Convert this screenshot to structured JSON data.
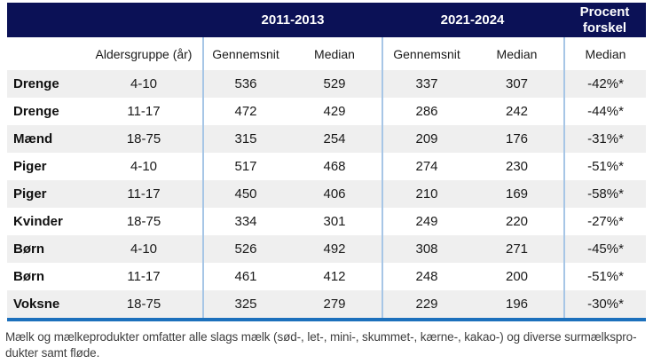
{
  "chart_data": {
    "type": "table",
    "periods": [
      "2011-2013",
      "2021-2024"
    ],
    "diff_header": "Procent forskel",
    "sub_headers": [
      "",
      "Aldersgruppe (år)",
      "Gennemsnit",
      "Median",
      "Gennemsnit",
      "Median",
      "Median"
    ],
    "rows": [
      {
        "group": "Drenge",
        "age": "4-10",
        "avg_2011_2013": 536,
        "median_2011_2013": 529,
        "avg_2021_2024": 337,
        "median_2021_2024": 307,
        "pct_diff_median": "-42%*"
      },
      {
        "group": "Drenge",
        "age": "11-17",
        "avg_2011_2013": 472,
        "median_2011_2013": 429,
        "avg_2021_2024": 286,
        "median_2021_2024": 242,
        "pct_diff_median": "-44%*"
      },
      {
        "group": "Mænd",
        "age": "18-75",
        "avg_2011_2013": 315,
        "median_2011_2013": 254,
        "avg_2021_2024": 209,
        "median_2021_2024": 176,
        "pct_diff_median": "-31%*"
      },
      {
        "group": "Piger",
        "age": "4-10",
        "avg_2011_2013": 517,
        "median_2011_2013": 468,
        "avg_2021_2024": 274,
        "median_2021_2024": 230,
        "pct_diff_median": "-51%*"
      },
      {
        "group": "Piger",
        "age": "11-17",
        "avg_2011_2013": 450,
        "median_2011_2013": 406,
        "avg_2021_2024": 210,
        "median_2021_2024": 169,
        "pct_diff_median": "-58%*"
      },
      {
        "group": "Kvinder",
        "age": "18-75",
        "avg_2011_2013": 334,
        "median_2011_2013": 301,
        "avg_2021_2024": 249,
        "median_2021_2024": 220,
        "pct_diff_median": "-27%*"
      },
      {
        "group": "Børn",
        "age": "4-10",
        "avg_2011_2013": 526,
        "median_2011_2013": 492,
        "avg_2021_2024": 308,
        "median_2021_2024": 271,
        "pct_diff_median": "-45%*"
      },
      {
        "group": "Børn",
        "age": "11-17",
        "avg_2011_2013": 461,
        "median_2011_2013": 412,
        "avg_2021_2024": 248,
        "median_2021_2024": 200,
        "pct_diff_median": "-51%*"
      },
      {
        "group": "Voksne",
        "age": "18-75",
        "avg_2011_2013": 325,
        "median_2011_2013": 279,
        "avg_2021_2024": 229,
        "median_2021_2024": 196,
        "pct_diff_median": "-30%*"
      }
    ],
    "footnote": "Mælk og mælkeprodukter omfatter alle slags mælk (sød-, let-, mini-, skummet-, kærne-, kakao-) og diverse surmælksprodukter samt fløde."
  },
  "footnote_display": {
    "line1": "Mælk og mælkeprodukter omfatter alle slags mælk (sød-, let-, mini-, skummet-, kærne-, kakao-) og diverse surmælkspro-",
    "line2": "dukter samt fløde."
  },
  "colors": {
    "navy": "#0B1156",
    "row_alt": "#EFEFEF",
    "divider": "#A7C6E6",
    "divider_on_navy_faint": "#425088",
    "divider_on_navy": "#90ABD0",
    "rule": "#1C70BC",
    "text": "#1A1A1A",
    "footnote_text": "#3E3E3E"
  }
}
